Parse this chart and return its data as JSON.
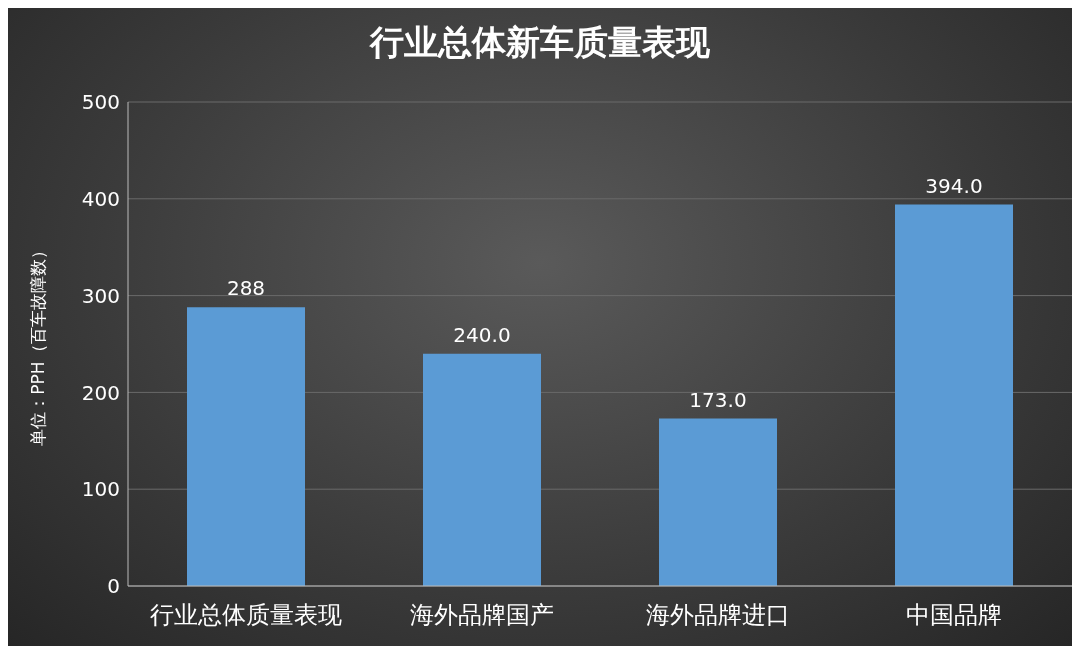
{
  "chart_data": {
    "type": "bar",
    "title": "行业总体新车质量表现",
    "ylabel": "单位：PPH（百车故障数）",
    "categories": [
      "行业总体质量表现",
      "海外品牌国产",
      "海外品牌进口",
      "中国品牌"
    ],
    "values": [
      288,
      240,
      173,
      394
    ],
    "value_labels": [
      "288",
      "240.0",
      "173.0",
      "394.0"
    ],
    "color": "#5b9bd5",
    "ylim": [
      0,
      500
    ],
    "yticks": [
      0,
      100,
      200,
      300,
      400,
      500
    ],
    "grid": "y"
  }
}
